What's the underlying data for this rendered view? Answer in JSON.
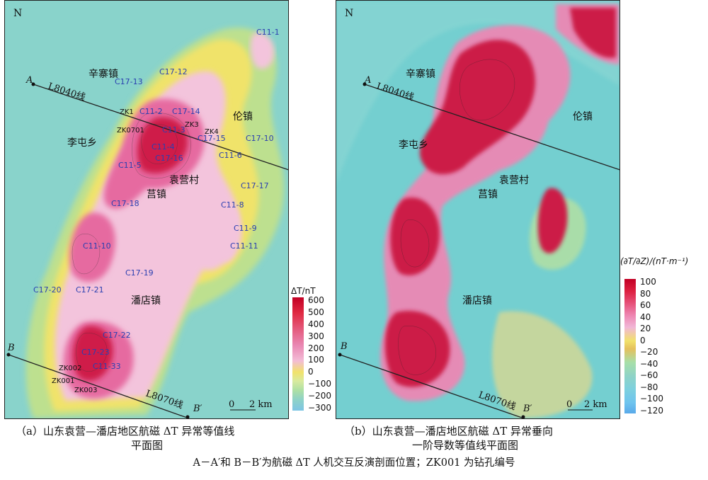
{
  "panel_a": {
    "north": "N",
    "towns": [
      "辛寨镇",
      "伦镇",
      "李屯乡",
      "袁营村",
      "莒镇",
      "潘店镇"
    ],
    "stations": [
      "C11-1",
      "C17-12",
      "C17-13",
      "C11-2",
      "C17-14",
      "C11-3",
      "C17-15",
      "C17-10",
      "C11-4",
      "C11-6",
      "C11-5",
      "C17-16",
      "C17-17",
      "C17-18",
      "C11-8",
      "C11-9",
      "C11-10",
      "C11-11",
      "C17-19",
      "C17-20",
      "C17-21",
      "C17-22",
      "C17-23",
      "C11-33"
    ],
    "wells": [
      "ZK1",
      "ZK0701",
      "ZK3",
      "ZK4",
      "ZK002",
      "ZK001",
      "ZK003"
    ],
    "lines": {
      "a_start": "A",
      "a_line": "L8040线",
      "a_end": "A′",
      "b_start": "B",
      "b_line": "L8070线",
      "b_end": "B′"
    },
    "scale": {
      "zero": "0",
      "len": "2 km"
    },
    "legend": {
      "title": "ΔT/nT",
      "ticks": [
        "600",
        "500",
        "400",
        "300",
        "200",
        "100",
        "0",
        "−100",
        "−200",
        "−300"
      ]
    },
    "caption_line1": "（a）山东袁营—潘店地区航磁 ΔT 异常等值线",
    "caption_line2": "平面图"
  },
  "panel_b": {
    "north": "N",
    "legend": {
      "title": "(∂T/∂Z)/(nT·m⁻¹)",
      "ticks": [
        "100",
        "80",
        "60",
        "40",
        "20",
        "0",
        "−20",
        "−40",
        "−60",
        "−80",
        "−100",
        "−120"
      ]
    },
    "caption_line1": "（b）山东袁营—潘店地区航磁 ΔT 异常垂向",
    "caption_line2": "一阶导数等值线平面图"
  },
  "note": "A－A′和 B－B′为航磁 ΔT 人机交互反演剖面位置；ZK001 为钻孔编号",
  "colors": {
    "high": "#c8102e",
    "mid_high": "#e0457b",
    "pink": "#f2b8d6",
    "yellow": "#f0e36a",
    "green": "#b7d98c",
    "cyan": "#8fd3cc",
    "blue": "#7ec3e6"
  }
}
